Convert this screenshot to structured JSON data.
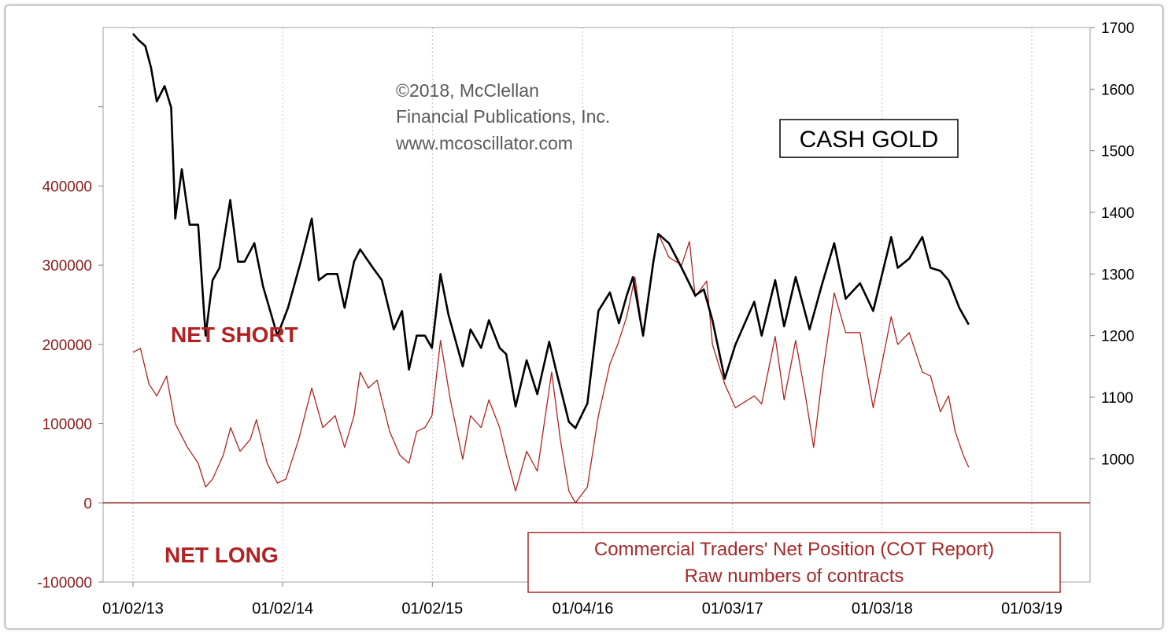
{
  "copyright": {
    "line1": "©2018, McClellan",
    "line2": "Financial Publications, Inc.",
    "line3": "www.mcoscillator.com"
  },
  "labels": {
    "gold_title": "CASH GOLD",
    "net_short": "NET SHORT",
    "net_long": "NET LONG",
    "cot_title_line1": "Commercial Traders' Net Position (COT Report)",
    "cot_title_line2": "Raw numbers of contracts"
  },
  "colors": {
    "gold_line": "#000000",
    "cot_line": "#b22222",
    "zero_line": "#8b1a1a",
    "grid": "#c0c0c0",
    "left_axis_text": "#8b1a1a"
  },
  "chart_data": {
    "type": "line",
    "x_ticks": [
      "01/02/13",
      "01/02/14",
      "01/02/15",
      "01/04/16",
      "01/03/17",
      "01/03/18",
      "01/03/19"
    ],
    "y_left": {
      "ticks": [
        "-100000",
        "0",
        "100000",
        "200000",
        "300000",
        "400000"
      ],
      "range": [
        -100000,
        600000
      ]
    },
    "y_right": {
      "ticks": [
        "1000",
        "1100",
        "1200",
        "1300",
        "1400",
        "1500",
        "1600",
        "1700"
      ],
      "range": [
        800,
        1700
      ]
    },
    "grid": "vertical",
    "series": [
      {
        "name": "CASH GOLD",
        "axis": "right",
        "points": [
          [
            "2013-01-02",
            1690
          ],
          [
            "2013-01-15",
            1680
          ],
          [
            "2013-02-01",
            1670
          ],
          [
            "2013-02-15",
            1635
          ],
          [
            "2013-03-01",
            1580
          ],
          [
            "2013-03-20",
            1605
          ],
          [
            "2013-04-05",
            1570
          ],
          [
            "2013-04-15",
            1390
          ],
          [
            "2013-05-01",
            1470
          ],
          [
            "2013-05-20",
            1380
          ],
          [
            "2013-06-10",
            1380
          ],
          [
            "2013-06-28",
            1200
          ],
          [
            "2013-07-15",
            1290
          ],
          [
            "2013-08-01",
            1310
          ],
          [
            "2013-08-27",
            1420
          ],
          [
            "2013-09-15",
            1320
          ],
          [
            "2013-10-01",
            1320
          ],
          [
            "2013-10-25",
            1350
          ],
          [
            "2013-11-15",
            1280
          ],
          [
            "2013-12-20",
            1200
          ],
          [
            "2014-01-15",
            1245
          ],
          [
            "2014-02-15",
            1320
          ],
          [
            "2014-03-14",
            1390
          ],
          [
            "2014-03-31",
            1290
          ],
          [
            "2014-04-20",
            1300
          ],
          [
            "2014-05-15",
            1300
          ],
          [
            "2014-06-02",
            1245
          ],
          [
            "2014-06-25",
            1320
          ],
          [
            "2014-07-10",
            1340
          ],
          [
            "2014-08-10",
            1310
          ],
          [
            "2014-09-01",
            1290
          ],
          [
            "2014-09-30",
            1210
          ],
          [
            "2014-10-20",
            1240
          ],
          [
            "2014-11-06",
            1145
          ],
          [
            "2014-11-25",
            1200
          ],
          [
            "2014-12-15",
            1200
          ],
          [
            "2015-01-01",
            1180
          ],
          [
            "2015-01-22",
            1300
          ],
          [
            "2015-02-10",
            1235
          ],
          [
            "2015-03-17",
            1150
          ],
          [
            "2015-04-05",
            1210
          ],
          [
            "2015-05-01",
            1180
          ],
          [
            "2015-05-20",
            1225
          ],
          [
            "2015-06-15",
            1180
          ],
          [
            "2015-07-01",
            1170
          ],
          [
            "2015-07-24",
            1085
          ],
          [
            "2015-08-20",
            1160
          ],
          [
            "2015-09-15",
            1105
          ],
          [
            "2015-10-14",
            1190
          ],
          [
            "2015-11-01",
            1140
          ],
          [
            "2015-12-01",
            1060
          ],
          [
            "2015-12-17",
            1050
          ],
          [
            "2016-01-15",
            1090
          ],
          [
            "2016-02-11",
            1240
          ],
          [
            "2016-03-10",
            1270
          ],
          [
            "2016-04-01",
            1220
          ],
          [
            "2016-04-20",
            1265
          ],
          [
            "2016-05-05",
            1295
          ],
          [
            "2016-05-30",
            1200
          ],
          [
            "2016-06-24",
            1320
          ],
          [
            "2016-07-06",
            1365
          ],
          [
            "2016-08-01",
            1350
          ],
          [
            "2016-09-01",
            1310
          ],
          [
            "2016-10-04",
            1265
          ],
          [
            "2016-10-25",
            1275
          ],
          [
            "2016-11-15",
            1225
          ],
          [
            "2016-12-15",
            1130
          ],
          [
            "2017-01-10",
            1185
          ],
          [
            "2017-02-25",
            1255
          ],
          [
            "2017-03-15",
            1200
          ],
          [
            "2017-04-17",
            1290
          ],
          [
            "2017-05-09",
            1215
          ],
          [
            "2017-06-06",
            1295
          ],
          [
            "2017-07-10",
            1210
          ],
          [
            "2017-08-10",
            1285
          ],
          [
            "2017-09-08",
            1350
          ],
          [
            "2017-10-06",
            1260
          ],
          [
            "2017-11-10",
            1285
          ],
          [
            "2017-12-12",
            1240
          ],
          [
            "2018-01-25",
            1360
          ],
          [
            "2018-02-10",
            1310
          ],
          [
            "2018-03-10",
            1325
          ],
          [
            "2018-04-11",
            1360
          ],
          [
            "2018-05-01",
            1310
          ],
          [
            "2018-05-25",
            1305
          ],
          [
            "2018-06-14",
            1290
          ],
          [
            "2018-07-10",
            1245
          ],
          [
            "2018-08-02",
            1218
          ]
        ]
      },
      {
        "name": "Commercial Traders' Net Position (COT Report)",
        "axis": "left",
        "points": [
          [
            "2013-01-02",
            190000
          ],
          [
            "2013-01-20",
            195000
          ],
          [
            "2013-02-10",
            150000
          ],
          [
            "2013-03-01",
            135000
          ],
          [
            "2013-03-25",
            160000
          ],
          [
            "2013-04-15",
            100000
          ],
          [
            "2013-05-15",
            70000
          ],
          [
            "2013-06-10",
            50000
          ],
          [
            "2013-06-28",
            20000
          ],
          [
            "2013-07-15",
            30000
          ],
          [
            "2013-08-10",
            60000
          ],
          [
            "2013-08-28",
            95000
          ],
          [
            "2013-09-20",
            65000
          ],
          [
            "2013-10-15",
            80000
          ],
          [
            "2013-10-30",
            105000
          ],
          [
            "2013-11-25",
            50000
          ],
          [
            "2013-12-20",
            25000
          ],
          [
            "2014-01-10",
            30000
          ],
          [
            "2014-02-10",
            80000
          ],
          [
            "2014-03-14",
            145000
          ],
          [
            "2014-04-10",
            95000
          ],
          [
            "2014-05-10",
            110000
          ],
          [
            "2014-06-02",
            70000
          ],
          [
            "2014-06-25",
            110000
          ],
          [
            "2014-07-10",
            165000
          ],
          [
            "2014-07-30",
            145000
          ],
          [
            "2014-08-20",
            155000
          ],
          [
            "2014-09-20",
            90000
          ],
          [
            "2014-10-15",
            60000
          ],
          [
            "2014-11-06",
            50000
          ],
          [
            "2014-11-25",
            90000
          ],
          [
            "2014-12-15",
            95000
          ],
          [
            "2015-01-01",
            110000
          ],
          [
            "2015-01-22",
            205000
          ],
          [
            "2015-02-15",
            130000
          ],
          [
            "2015-03-17",
            55000
          ],
          [
            "2015-04-05",
            110000
          ],
          [
            "2015-05-01",
            95000
          ],
          [
            "2015-05-20",
            130000
          ],
          [
            "2015-06-15",
            95000
          ],
          [
            "2015-07-01",
            60000
          ],
          [
            "2015-07-24",
            15000
          ],
          [
            "2015-08-20",
            65000
          ],
          [
            "2015-09-15",
            40000
          ],
          [
            "2015-10-20",
            165000
          ],
          [
            "2015-11-10",
            80000
          ],
          [
            "2015-12-01",
            15000
          ],
          [
            "2015-12-17",
            0
          ],
          [
            "2016-01-15",
            20000
          ],
          [
            "2016-02-11",
            110000
          ],
          [
            "2016-03-10",
            175000
          ],
          [
            "2016-03-29",
            200000
          ],
          [
            "2016-04-20",
            235000
          ],
          [
            "2016-05-10",
            285000
          ],
          [
            "2016-05-30",
            210000
          ],
          [
            "2016-06-24",
            300000
          ],
          [
            "2016-07-06",
            340000
          ],
          [
            "2016-08-01",
            310000
          ],
          [
            "2016-09-01",
            300000
          ],
          [
            "2016-09-20",
            330000
          ],
          [
            "2016-10-04",
            260000
          ],
          [
            "2016-11-01",
            280000
          ],
          [
            "2016-11-15",
            200000
          ],
          [
            "2016-12-15",
            150000
          ],
          [
            "2017-01-10",
            120000
          ],
          [
            "2017-02-25",
            135000
          ],
          [
            "2017-03-15",
            125000
          ],
          [
            "2017-04-17",
            210000
          ],
          [
            "2017-05-09",
            130000
          ],
          [
            "2017-06-06",
            205000
          ],
          [
            "2017-06-30",
            135000
          ],
          [
            "2017-07-20",
            70000
          ],
          [
            "2017-08-10",
            160000
          ],
          [
            "2017-09-08",
            265000
          ],
          [
            "2017-10-06",
            215000
          ],
          [
            "2017-11-10",
            215000
          ],
          [
            "2017-12-12",
            120000
          ],
          [
            "2018-01-25",
            235000
          ],
          [
            "2018-02-10",
            200000
          ],
          [
            "2018-03-10",
            215000
          ],
          [
            "2018-04-11",
            165000
          ],
          [
            "2018-05-01",
            160000
          ],
          [
            "2018-05-25",
            115000
          ],
          [
            "2018-06-14",
            135000
          ],
          [
            "2018-06-30",
            90000
          ],
          [
            "2018-07-20",
            60000
          ],
          [
            "2018-08-02",
            45000
          ]
        ]
      }
    ]
  }
}
